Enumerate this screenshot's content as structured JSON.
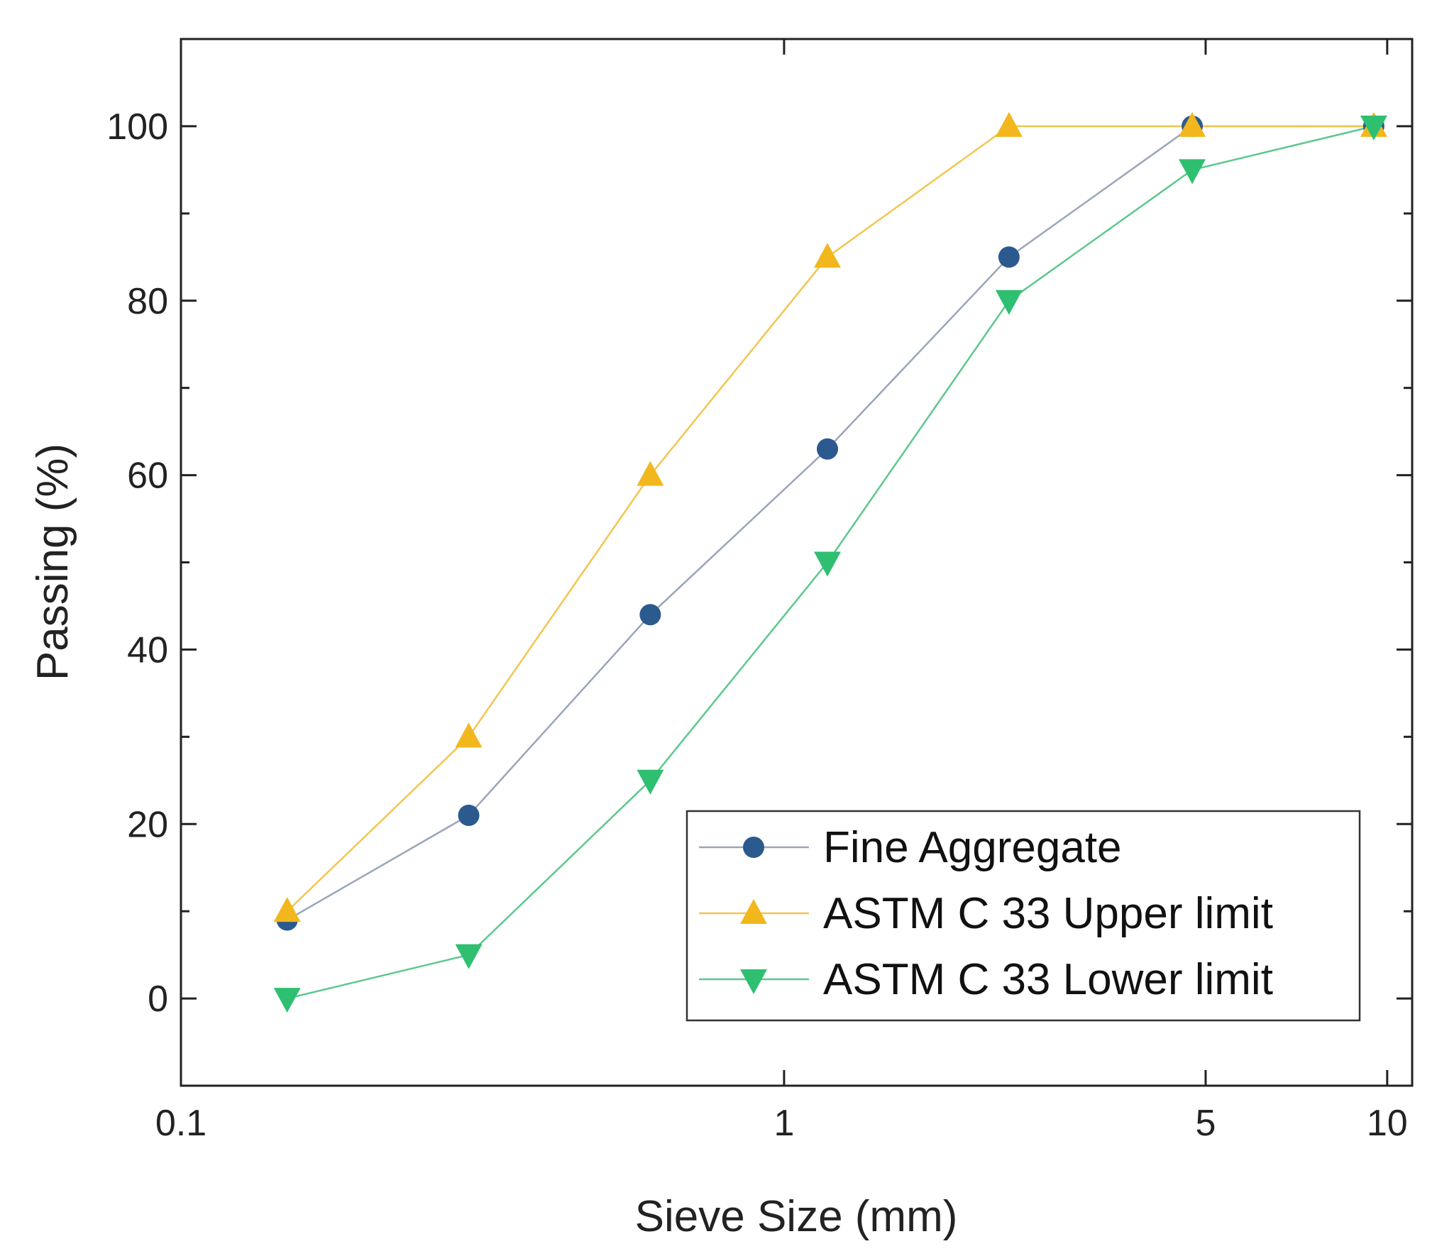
{
  "chart_data": {
    "type": "line",
    "title": "",
    "xlabel": "Sieve Size (mm)",
    "ylabel": "Passing (%)",
    "xscale": "log",
    "xlim": [
      0.1,
      11
    ],
    "ylim": [
      -10,
      110
    ],
    "xticks": [
      {
        "value": 0.1,
        "label": "0.1"
      },
      {
        "value": 1,
        "label": "1"
      },
      {
        "value": 5,
        "label": "5"
      },
      {
        "value": 10,
        "label": "10"
      }
    ],
    "yticks": [
      {
        "value": 0,
        "label": "0"
      },
      {
        "value": 20,
        "label": "20"
      },
      {
        "value": 40,
        "label": "40"
      },
      {
        "value": 60,
        "label": "60"
      },
      {
        "value": 80,
        "label": "80"
      },
      {
        "value": 100,
        "label": "100"
      }
    ],
    "yminor": [
      10,
      30,
      50,
      70,
      90
    ],
    "x": [
      0.15,
      0.3,
      0.6,
      1.18,
      2.36,
      4.75,
      9.5
    ],
    "series": [
      {
        "name": "Fine Aggregate",
        "marker": "circle",
        "color": "#2b5a8f",
        "line_color": "#9aa6b8",
        "values": [
          9,
          21,
          44,
          63,
          85,
          100,
          100
        ]
      },
      {
        "name": "ASTM C 33 Upper limit",
        "marker": "triangle-up",
        "color": "#f2b71c",
        "line_color": "#f2c64f",
        "values": [
          10,
          30,
          60,
          85,
          100,
          100,
          100
        ]
      },
      {
        "name": "ASTM C 33 Lower limit",
        "marker": "triangle-down",
        "color": "#2fbf71",
        "line_color": "#5cc88d",
        "values": [
          0,
          5,
          25,
          50,
          80,
          95,
          100
        ]
      }
    ],
    "legend_position": "bottom-right"
  }
}
